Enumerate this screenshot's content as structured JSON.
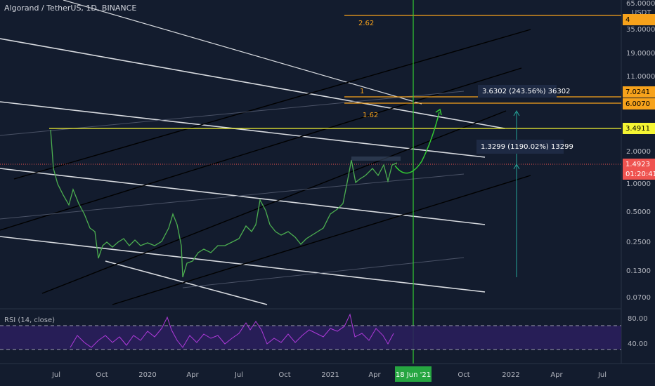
{
  "header": {
    "symbol": "Algorand / TetherUS, 1D, BINANCE"
  },
  "price_axis": {
    "currency": "USDT",
    "labels": [
      "65.0000",
      "35.0000",
      "19.0000",
      "11.0000",
      "2.0000",
      "1.0000",
      "0.5000",
      "0.2500",
      "0.1300",
      "0.0700"
    ],
    "badges": [
      "4",
      "7.0241",
      "6.0070",
      "3.4911",
      "1.4923",
      "01:20:41"
    ]
  },
  "annotations": {
    "fib_262": "2.62",
    "fib_162": "1.62",
    "fib_1": "1",
    "target_measure": "3.6302 (243.56%) 36302",
    "rise_measure": "1.3299 (1190.02%) 13299"
  },
  "rsi": {
    "title": "RSI (14, close)",
    "labels": [
      "80.00",
      "40.00"
    ]
  },
  "time_axis": {
    "labels": [
      "Jul",
      "Oct",
      "2020",
      "Apr",
      "Jul",
      "Oct",
      "2021",
      "Apr",
      "Oct",
      "2022",
      "Apr",
      "Jul"
    ],
    "cursor": "18 Jun '21"
  }
}
